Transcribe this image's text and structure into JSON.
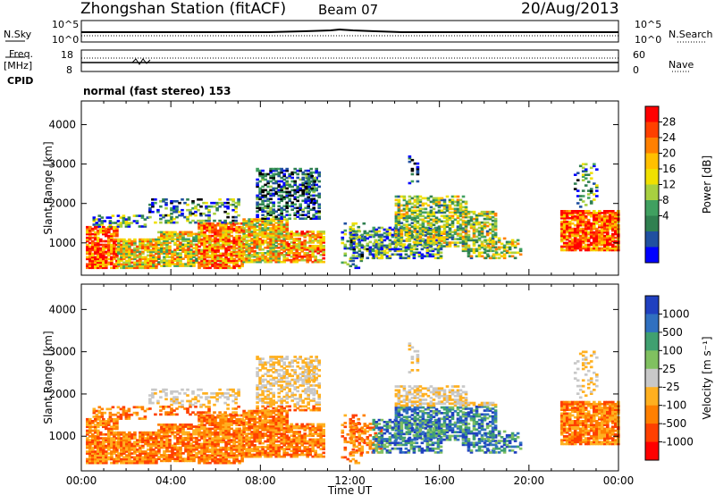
{
  "header": {
    "title": "Zhongshan Station (fitACF)",
    "beam": "Beam 07",
    "date": "20/Aug/2013"
  },
  "left_labels": {
    "nsky": "N.Sky",
    "freq": "Freq.",
    "mhz": "[MHz]",
    "cpid": "CPID"
  },
  "right_labels": {
    "nsearch": "N.Search",
    "nave": "Nave"
  },
  "axis_ticks": {
    "nsky_left": [
      "10^5",
      "10^0"
    ],
    "nsky_right": [
      "10^5",
      "10^0"
    ],
    "freq_left": [
      "18",
      "8"
    ],
    "nave_right": [
      "60",
      "0"
    ]
  },
  "cpid_text": "normal (fast stereo) 153",
  "chart_data": [
    {
      "type": "heatmap",
      "name": "power-panel",
      "ylabel": "Slant Range [km]",
      "yticks": [
        1000,
        2000,
        3000,
        4000
      ],
      "ylim": [
        180,
        4600
      ],
      "xlim": [
        0,
        24
      ],
      "colorbar": {
        "label": "Power [dB]",
        "ticks": [
          "28",
          "24",
          "20",
          "16",
          "12",
          "8",
          "4"
        ],
        "colors": [
          "#ff0000",
          "#ff4000",
          "#ff8000",
          "#ffc000",
          "#f0e000",
          "#a8d040",
          "#40a060",
          "#308050",
          "#2050a0",
          "#0000ff"
        ]
      }
    },
    {
      "type": "heatmap",
      "name": "velocity-panel",
      "ylabel": "Slant Range [km]",
      "yticks": [
        1000,
        2000,
        3000,
        4000
      ],
      "ylim": [
        180,
        4600
      ],
      "xlim": [
        0,
        24
      ],
      "xlabel": "Time UT",
      "xticks": [
        "00:00",
        "04:00",
        "08:00",
        "12:00",
        "16:00",
        "20:00",
        "00:00"
      ],
      "colorbar": {
        "label": "Velocity [m s⁻¹]",
        "ticks": [
          "1000",
          "500",
          "100",
          "25",
          "-25",
          "-100",
          "-500",
          "-1000"
        ],
        "colors": [
          "#2040c0",
          "#3070c0",
          "#40a070",
          "#80c060",
          "#c8c8c8",
          "#ffb020",
          "#ff8000",
          "#ff4000",
          "#ff0000"
        ]
      }
    }
  ],
  "colors": {
    "background": "#ffffff",
    "power_high": "#ff0000",
    "power_low": "#0000ff",
    "velocity_gray": "#c8c8c8",
    "velocity_blue": "#2040c0"
  }
}
